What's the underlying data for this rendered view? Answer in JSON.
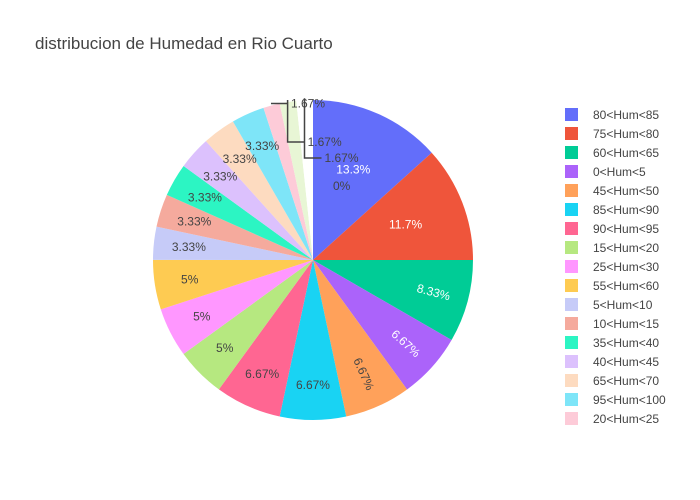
{
  "chart_data": {
    "type": "pie",
    "title": "distribucion de Humedad en Rio Cuarto",
    "direction": "clockwise",
    "sort": "descending",
    "legend_position": "right",
    "slices": [
      {
        "label": "80<Hum<85",
        "value": 13.3,
        "text": "13.3%",
        "color": "#636efa"
      },
      {
        "label": "75<Hum<80",
        "value": 11.7,
        "text": "11.7%",
        "color": "#ef553b"
      },
      {
        "label": "60<Hum<65",
        "value": 8.33,
        "text": "8.33%",
        "color": "#00cc96"
      },
      {
        "label": "0<Hum<5",
        "value": 6.67,
        "text": "6.67%",
        "color": "#ab63fa"
      },
      {
        "label": "45<Hum<50",
        "value": 6.67,
        "text": "6.67%",
        "color": "#ffa15a"
      },
      {
        "label": "85<Hum<90",
        "value": 6.67,
        "text": "6.67%",
        "color": "#19d3f3"
      },
      {
        "label": "90<Hum<95",
        "value": 6.67,
        "text": "6.67%",
        "color": "#ff6692"
      },
      {
        "label": "15<Hum<20",
        "value": 5,
        "text": "5%",
        "color": "#b6e880"
      },
      {
        "label": "25<Hum<30",
        "value": 5,
        "text": "5%",
        "color": "#ff97ff"
      },
      {
        "label": "55<Hum<60",
        "value": 5,
        "text": "5%",
        "color": "#fecb52"
      },
      {
        "label": "5<Hum<10",
        "value": 3.33,
        "text": "3.33%",
        "color": "#c6cbf8"
      },
      {
        "label": "10<Hum<15",
        "value": 3.33,
        "text": "3.33%",
        "color": "#f5aa9d"
      },
      {
        "label": "35<Hum<40",
        "value": 3.33,
        "text": "3.33%",
        "color": "#2cf5c3"
      },
      {
        "label": "40<Hum<45",
        "value": 3.33,
        "text": "3.33%",
        "color": "#dcc1fd"
      },
      {
        "label": "65<Hum<70",
        "value": 3.33,
        "text": "3.33%",
        "color": "#fddbc0"
      },
      {
        "label": "95<Hum<100",
        "value": 3.33,
        "text": "3.33%",
        "color": "#7ee5f8"
      },
      {
        "label": "20<Hum<25",
        "value": 1.67,
        "text": "1.67%",
        "color": "#fdcbd8"
      },
      {
        "label": "",
        "value": 1.67,
        "text": "1.67%",
        "color": "#e8f6d5"
      },
      {
        "label": "",
        "value": 1.67,
        "text": "1.67%",
        "color": "#ffffff"
      },
      {
        "label": "",
        "value": 0,
        "text": "0%",
        "color": "#ffffff"
      }
    ]
  }
}
